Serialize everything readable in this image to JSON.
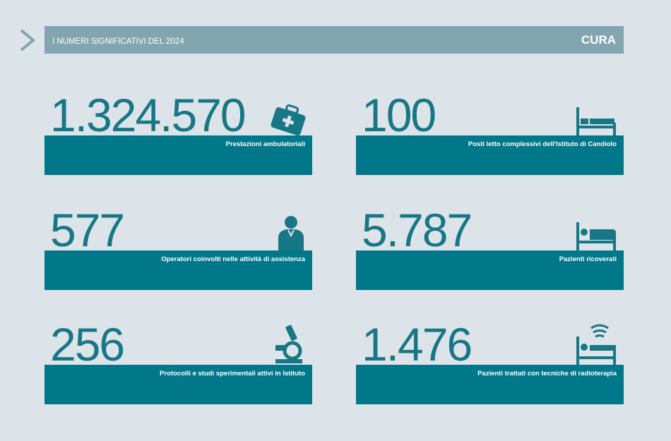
{
  "header": {
    "title": "I NUMERI SIGNIFICATIVI DEL 2024",
    "section": "CURA"
  },
  "colors": {
    "background": "#dce3e9",
    "header": "#82a5b0",
    "accent": "#00788a",
    "number": "#177785"
  },
  "stats": [
    {
      "value": "1.324.570",
      "label": "Prestazioni ambulatoriali",
      "icon": "medical-bag-icon"
    },
    {
      "value": "100",
      "label": "Posti letto complessivi dell'Istituto di Candiolo",
      "icon": "bed-icon"
    },
    {
      "value": "577",
      "label": "Operatori coinvolti nelle attività di assistenza",
      "icon": "doctor-icon"
    },
    {
      "value": "5.787",
      "label": "Pazienti ricoverati",
      "icon": "patient-bed-icon"
    },
    {
      "value": "256",
      "label": "Protocolli e studi sperimentali attivi in Istituto",
      "icon": "microscope-icon"
    },
    {
      "value": "1.476",
      "label": "Pazienti trattati con tecniche di radioterapia",
      "icon": "radiotherapy-bed-icon"
    }
  ]
}
